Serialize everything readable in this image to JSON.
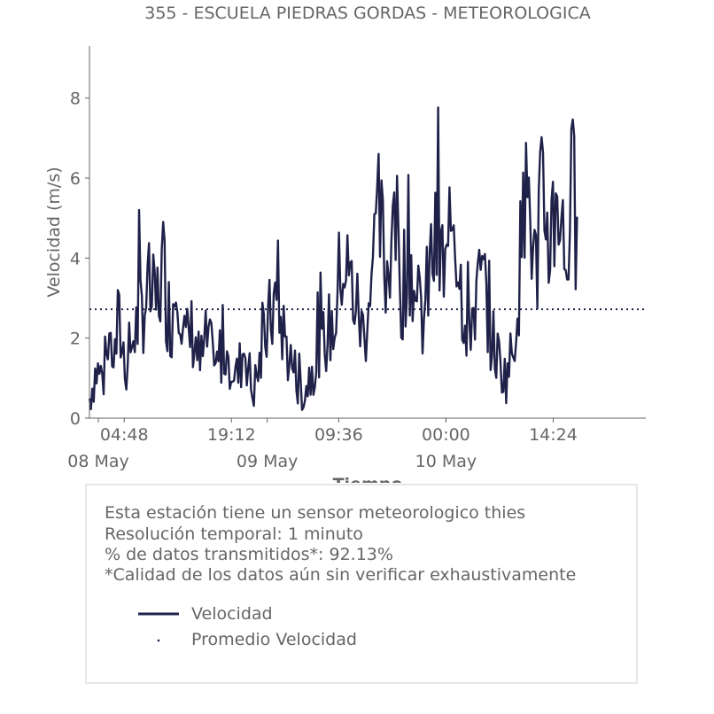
{
  "chart_data": {
    "type": "line",
    "title": "355 - ESCUELA PIEDRAS GORDAS - METEOROLOGICA",
    "xlabel": "Tiempo",
    "ylabel": "Velocidad (m/s)",
    "ylim": [
      0,
      9.3
    ],
    "xlim": [
      "2024-05-08 00:08",
      "2024-05-11 02:50"
    ],
    "yticks": [
      0,
      2,
      4,
      6,
      8
    ],
    "xticks": [
      {
        "time": "2024-05-08 04:48",
        "label": "04:48"
      },
      {
        "time": "2024-05-08 19:12",
        "label": "19:12"
      },
      {
        "time": "2024-05-09 09:36",
        "label": "09:36"
      },
      {
        "time": "2024-05-10 00:00",
        "label": "00:00"
      },
      {
        "time": "2024-05-10 14:24",
        "label": "14:24"
      }
    ],
    "date_labels": [
      {
        "time": "2024-05-08 00:00",
        "label": "08 May"
      },
      {
        "time": "2024-05-09 00:00",
        "label": "09 May"
      },
      {
        "time": "2024-05-10 00:00",
        "label": "10 May"
      }
    ],
    "grid": false,
    "colors": {
      "velocidad": "#1f2149",
      "promedio": "#1f2149",
      "axis": "#666666"
    },
    "series": [
      {
        "name": "Velocidad",
        "style": "solid",
        "x": [
          "2024-05-08 00:08",
          "2024-05-08 01:00",
          "2024-05-08 02:00",
          "2024-05-08 03:00",
          "2024-05-08 03:30",
          "2024-05-08 04:00",
          "2024-05-08 05:00",
          "2024-05-08 06:00",
          "2024-05-08 07:00",
          "2024-05-08 08:00",
          "2024-05-08 09:00",
          "2024-05-08 10:00",
          "2024-05-08 11:00",
          "2024-05-08 12:00",
          "2024-05-08 13:00",
          "2024-05-08 14:00",
          "2024-05-08 15:00",
          "2024-05-08 16:00",
          "2024-05-08 17:00",
          "2024-05-08 18:00",
          "2024-05-08 19:00",
          "2024-05-08 20:00",
          "2024-05-08 21:00",
          "2024-05-08 22:00",
          "2024-05-08 23:00",
          "2024-05-09 00:00",
          "2024-05-09 01:00",
          "2024-05-09 02:00",
          "2024-05-09 03:00",
          "2024-05-09 04:00",
          "2024-05-09 05:00",
          "2024-05-09 06:00",
          "2024-05-09 07:00",
          "2024-05-09 08:00",
          "2024-05-09 09:00",
          "2024-05-09 10:00",
          "2024-05-09 11:00",
          "2024-05-09 12:00",
          "2024-05-09 13:00",
          "2024-05-09 14:00",
          "2024-05-09 15:00",
          "2024-05-09 16:00",
          "2024-05-09 17:00",
          "2024-05-09 18:00",
          "2024-05-09 19:00",
          "2024-05-09 20:00",
          "2024-05-09 21:00",
          "2024-05-09 22:00",
          "2024-05-09 23:00",
          "2024-05-10 00:00",
          "2024-05-10 01:00",
          "2024-05-10 02:00",
          "2024-05-10 03:00",
          "2024-05-10 04:00",
          "2024-05-10 05:00",
          "2024-05-10 06:00",
          "2024-05-10 07:00",
          "2024-05-10 08:00",
          "2024-05-10 09:00",
          "2024-05-10 10:00",
          "2024-05-10 11:00",
          "2024-05-10 12:00",
          "2024-05-10 13:00",
          "2024-05-10 14:00",
          "2024-05-10 15:00",
          "2024-05-10 16:00",
          "2024-05-10 17:00",
          "2024-05-10 17:40"
        ],
        "values": [
          0.5,
          1.2,
          1.0,
          2.0,
          1.4,
          2.4,
          1.3,
          2.0,
          2.6,
          3.2,
          2.7,
          3.8,
          2.3,
          3.9,
          1.8,
          2.2,
          1.3,
          2.0,
          1.1,
          1.8,
          1.5,
          1.0,
          1.9,
          0.6,
          1.3,
          2.2,
          2.9,
          2.3,
          1.5,
          1.0,
          0.6,
          1.3,
          1.6,
          2.1,
          2.3,
          4.0,
          3.5,
          2.8,
          2.0,
          3.6,
          5.0,
          3.5,
          5.5,
          3.1,
          4.4,
          2.8,
          2.4,
          3.9,
          4.3,
          3.4,
          5.5,
          3.3,
          2.3,
          3.0,
          3.4,
          2.1,
          1.5,
          1.0,
          1.7,
          4.0,
          6.0,
          3.5,
          5.6,
          4.4,
          6.0,
          3.8,
          5.7,
          3.9
        ]
      },
      {
        "name": "Promedio Velocidad",
        "style": "dotted",
        "x": [
          "2024-05-08 00:08",
          "2024-05-11 02:50"
        ],
        "values": [
          2.72,
          2.72
        ]
      }
    ],
    "legend": {
      "placement": "bottom",
      "entries": [
        {
          "label": "Velocidad",
          "marker": "line"
        },
        {
          "label": "Promedio Velocidad",
          "marker": "dot"
        }
      ]
    }
  },
  "info": {
    "lines": [
      "Esta estación tiene un sensor meteorologico thies",
      "Resolución temporal: 1 minuto",
      "% de datos transmitidos*: 92.13%",
      "*Calidad de los datos aún sin verificar exhaustivamente"
    ]
  }
}
